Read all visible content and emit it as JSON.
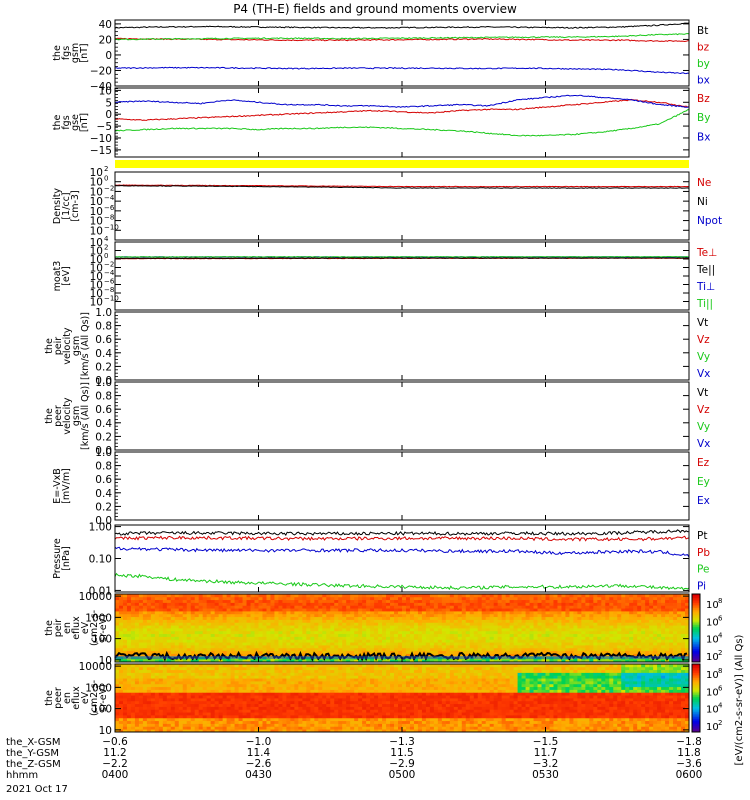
{
  "title": "P4 (TH-E) fields and ground moments overview",
  "date_label": "2021 Oct 17",
  "colors": {
    "black": "#000000",
    "red": "#d40000",
    "green": "#19c819",
    "blue": "#0000cc",
    "yellow": "#ffff00"
  },
  "chart_data": [
    {
      "type": "line",
      "id": "fgs_gsm",
      "ylabel": [
        "the",
        "fgs",
        "gsm",
        "[nT]"
      ],
      "ylim": [
        -40,
        45
      ],
      "ticks": [
        40,
        20,
        0,
        -20,
        -40
      ],
      "x": [
        0,
        0.08,
        0.16,
        0.24,
        0.32,
        0.4,
        0.48,
        0.56,
        0.64,
        0.72,
        0.8,
        0.88,
        0.94,
        1
      ],
      "series": [
        {
          "name": "Bt",
          "color": "#000000",
          "values": [
            35,
            36,
            36.5,
            36,
            35.5,
            35,
            35,
            35.5,
            36,
            35.5,
            35,
            36,
            38,
            41
          ]
        },
        {
          "name": "bz",
          "color": "#d40000",
          "values": [
            21,
            20.5,
            20,
            19.5,
            19,
            19,
            19.5,
            20,
            20.5,
            20,
            19,
            19,
            18,
            18
          ]
        },
        {
          "name": "by",
          "color": "#19c819",
          "values": [
            20,
            20.5,
            21,
            21.5,
            21.5,
            21,
            21.5,
            22,
            22.5,
            23,
            23,
            24,
            26,
            27
          ]
        },
        {
          "name": "bx",
          "color": "#0000cc",
          "values": [
            -17,
            -16.5,
            -16.5,
            -17,
            -17.5,
            -17,
            -17,
            -17,
            -17.5,
            -17,
            -18,
            -19,
            -22,
            -24
          ]
        }
      ]
    },
    {
      "type": "line",
      "id": "fgs_gse",
      "ylabel": [
        "the",
        "fgs",
        "gse",
        "[nT]"
      ],
      "ylim": [
        -18,
        11
      ],
      "ticks": [
        10,
        5,
        0,
        -5,
        -10,
        -15
      ],
      "x": [
        0,
        0.05,
        0.1,
        0.15,
        0.2,
        0.25,
        0.3,
        0.35,
        0.4,
        0.45,
        0.5,
        0.55,
        0.6,
        0.65,
        0.7,
        0.75,
        0.8,
        0.85,
        0.9,
        0.95,
        1
      ],
      "series": [
        {
          "name": "Bz",
          "color": "#d40000",
          "values": [
            -2,
            -2.5,
            -2,
            -1.5,
            -1,
            -0.5,
            0,
            0.5,
            1,
            1.5,
            1,
            0.5,
            1.5,
            2,
            2,
            3,
            4,
            5,
            6,
            5,
            3
          ]
        },
        {
          "name": "By",
          "color": "#19c819",
          "values": [
            -7,
            -6.5,
            -6,
            -6,
            -6,
            -6.5,
            -6,
            -6,
            -5.5,
            -5.5,
            -6,
            -6.5,
            -7,
            -8,
            -9,
            -9,
            -8.5,
            -7.5,
            -6,
            -4,
            2
          ]
        },
        {
          "name": "Bx",
          "color": "#0000cc",
          "values": [
            5,
            5.5,
            5,
            4.5,
            6,
            5,
            4,
            4,
            3.5,
            3.5,
            3,
            3.5,
            4,
            3.5,
            6,
            7,
            8,
            7,
            6,
            4,
            3
          ]
        }
      ]
    },
    {
      "type": "line",
      "id": "density",
      "ylabel": [
        "Density",
        "[1/cc]",
        "[cm-3]"
      ],
      "log": true,
      "ylim": [
        -12,
        2
      ],
      "tick_exp": [
        2,
        0,
        -2,
        -4,
        -6,
        -8,
        -10
      ],
      "x": [
        0,
        0.25,
        0.5,
        0.75,
        1
      ],
      "series": [
        {
          "name": "Ne",
          "color": "#d40000",
          "values": [
            0.2,
            0.15,
            0.1,
            0.1,
            0.1
          ]
        },
        {
          "name": "Ni",
          "color": "#000000",
          "values": [
            0.15,
            0.1,
            0.05,
            0.05,
            0.05
          ]
        },
        {
          "name": "Npot",
          "color": "#0000cc",
          "values": [
            null,
            null,
            null,
            null,
            null
          ]
        }
      ]
    },
    {
      "type": "line",
      "id": "temperature",
      "ylabel": [
        "moat3",
        "[eV]"
      ],
      "log": true,
      "ylim": [
        -12,
        4
      ],
      "tick_exp": [
        4,
        2,
        0,
        -2,
        -4,
        -6,
        -8,
        -10
      ],
      "x": [
        0,
        0.25,
        0.5,
        0.75,
        1
      ],
      "series": [
        {
          "name": "Te⊥",
          "color": "#d40000",
          "values": [
            1.2,
            1.3,
            1.4,
            1.5,
            1.5
          ]
        },
        {
          "name": "Te||",
          "color": "#000000",
          "values": [
            1.5,
            1.6,
            1.7,
            1.7,
            1.8
          ]
        },
        {
          "name": "Ti⊥",
          "color": "#0000cc",
          "values": [
            3.0,
            3.1,
            3.1,
            3.2,
            3.2
          ]
        },
        {
          "name": "Ti||",
          "color": "#19c819",
          "values": [
            3.1,
            3.2,
            3.2,
            3.3,
            3.3
          ]
        }
      ]
    },
    {
      "type": "line",
      "id": "peir_velocity",
      "ylabel": [
        "the",
        "peir",
        "velocity",
        "gsm",
        "[km/s (All Qs)]"
      ],
      "ylim": [
        0,
        1
      ],
      "ticks": [
        1.0,
        0.8,
        0.6,
        0.4,
        0.2,
        0.0
      ],
      "series": [
        {
          "name": "Vt",
          "color": "#000000"
        },
        {
          "name": "Vz",
          "color": "#d40000"
        },
        {
          "name": "Vy",
          "color": "#19c819"
        },
        {
          "name": "Vx",
          "color": "#0000cc"
        }
      ]
    },
    {
      "type": "line",
      "id": "peer_velocity",
      "ylabel": [
        "the",
        "peer",
        "velocity",
        "gsm",
        "[km/s (All Qs)]"
      ],
      "ylim": [
        0,
        1
      ],
      "ticks": [
        1.0,
        0.8,
        0.6,
        0.4,
        0.2,
        0.0
      ],
      "series": [
        {
          "name": "Vt",
          "color": "#000000"
        },
        {
          "name": "Vz",
          "color": "#d40000"
        },
        {
          "name": "Vy",
          "color": "#19c819"
        },
        {
          "name": "Vx",
          "color": "#0000cc"
        }
      ]
    },
    {
      "type": "line",
      "id": "efield",
      "ylabel": [
        "E=-VxB",
        "[mV/m]"
      ],
      "ylim": [
        0,
        1
      ],
      "ticks": [
        1.0,
        0.8,
        0.6,
        0.4,
        0.2,
        0.0
      ],
      "series": [
        {
          "name": "Ez",
          "color": "#d40000"
        },
        {
          "name": "Ey",
          "color": "#19c819"
        },
        {
          "name": "Ex",
          "color": "#0000cc"
        }
      ]
    },
    {
      "type": "line",
      "id": "pressure",
      "ylabel": [
        "Pressure",
        "[nPa]"
      ],
      "log": true,
      "ylim": [
        -2.05,
        0.05
      ],
      "tick_exp": [
        0,
        -1,
        -2
      ],
      "tick_labels": [
        "1.00",
        "0.10",
        "0.01"
      ],
      "x": [
        0,
        0.05,
        0.1,
        0.2,
        0.3,
        0.4,
        0.5,
        0.6,
        0.7,
        0.75,
        0.8,
        0.85,
        0.9,
        0.95,
        1
      ],
      "series": [
        {
          "name": "Pt",
          "color": "#000000",
          "values": [
            0.6,
            0.62,
            0.63,
            0.62,
            0.6,
            0.6,
            0.61,
            0.6,
            0.62,
            0.6,
            0.6,
            0.62,
            0.65,
            0.7,
            0.75
          ]
        },
        {
          "name": "Pb",
          "color": "#d40000",
          "values": [
            0.42,
            0.44,
            0.45,
            0.44,
            0.42,
            0.42,
            0.43,
            0.43,
            0.43,
            0.4,
            0.4,
            0.4,
            0.4,
            0.42,
            0.45
          ]
        },
        {
          "name": "Pe",
          "color": "#19c819",
          "values": [
            0.03,
            0.028,
            0.022,
            0.018,
            0.016,
            0.014,
            0.013,
            0.012,
            0.013,
            0.013,
            0.013,
            0.014,
            0.014,
            0.012,
            0.011
          ]
        },
        {
          "name": "Pi",
          "color": "#0000cc",
          "values": [
            0.21,
            0.2,
            0.19,
            0.18,
            0.18,
            0.18,
            0.18,
            0.17,
            0.17,
            0.15,
            0.15,
            0.16,
            0.17,
            0.16,
            0.12
          ]
        }
      ]
    },
    {
      "type": "heatmap",
      "id": "peir_eflux",
      "ylabel": [
        "the",
        "peir",
        "en",
        "eflux",
        "eV",
        "(cm2-s-",
        "sr-eV)"
      ],
      "ylim_log": [
        0.9,
        4.1
      ],
      "tick_exp": [
        4,
        3,
        2,
        1
      ],
      "tick_labels": [
        "10000",
        "1000",
        "100",
        "10"
      ]
    },
    {
      "type": "heatmap",
      "id": "peer_eflux",
      "ylabel": [
        "the",
        "peer",
        "en",
        "eflux",
        "eV",
        "(cm2-s-",
        "sr-eV)"
      ],
      "ylim_log": [
        0.9,
        4.1
      ],
      "tick_exp": [
        4,
        3,
        2,
        1
      ],
      "tick_labels": [
        "10000",
        "1000",
        "100",
        "10"
      ]
    }
  ],
  "colorbar": {
    "label": "[eV/(cm2-s-sr-eV)] (All Qs)",
    "tick_exp": [
      8,
      6,
      4,
      2
    ]
  },
  "xaxis": {
    "row_labels": [
      "the_X-GSM",
      "the_Y-GSM",
      "the_Z-GSM",
      "hhmm"
    ],
    "columns": [
      {
        "x": "-0.6",
        "y": "11.2",
        "z": "-2.2",
        "t": "0400"
      },
      {
        "x": "-1.0",
        "y": "11.4",
        "z": "-2.6",
        "t": "0430"
      },
      {
        "x": "-1.3",
        "y": "11.5",
        "z": "-2.9",
        "t": "0500"
      },
      {
        "x": "-1.5",
        "y": "11.7",
        "z": "-3.2",
        "t": "0530"
      },
      {
        "x": "-1.8",
        "y": "11.8",
        "z": "-3.6",
        "t": "0600"
      }
    ]
  }
}
